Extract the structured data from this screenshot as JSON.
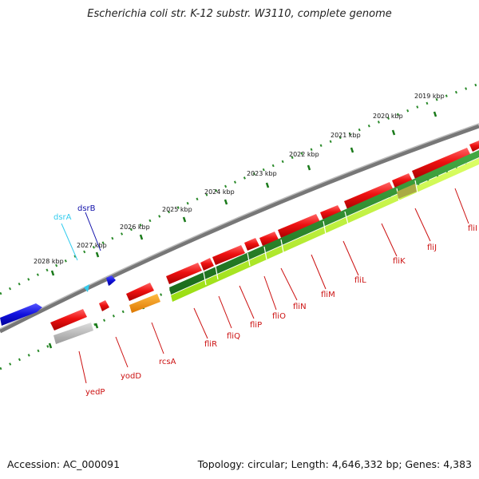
{
  "title": "Escherichia coli str. K-12 substr. W3110, complete genome",
  "footer": {
    "accession": "Accession: AC_000091",
    "stats": "Topology: circular; Length: 4,646,332 bp; Genes: 4,383"
  },
  "scale": {
    "kbp_labels": [
      "2019 kbp",
      "2020 kbp",
      "2021 kbp",
      "2022 kbp",
      "2023 kbp",
      "2024 kbp",
      "2025 kbp",
      "2026 kbp",
      "2027 kbp",
      "2028 kbp"
    ]
  },
  "genes": {
    "dsrA": "dsrA",
    "dsrB": "dsrB",
    "yedP": "yedP",
    "yodD": "yodD",
    "rcsA": "rcsA",
    "fliR": "fliR",
    "fliQ": "fliQ",
    "fliP": "fliP",
    "fliO": "fliO",
    "fliN": "fliN",
    "fliM": "fliM",
    "fliL": "fliL",
    "fliK": "fliK",
    "fliJ": "fliJ",
    "fliI": "fliI"
  },
  "colors": {
    "gene_red": "#ee1111",
    "gene_blue": "#1111dd",
    "rna_cyan": "#33ccee",
    "green_dark": "#2a8a2a",
    "green_light": "#aaee22",
    "orange": "#ee8800",
    "grey": "#aaaaaa",
    "label_red": "#cc1111",
    "label_cyan": "#33ccee",
    "label_blue": "#1111aa"
  }
}
